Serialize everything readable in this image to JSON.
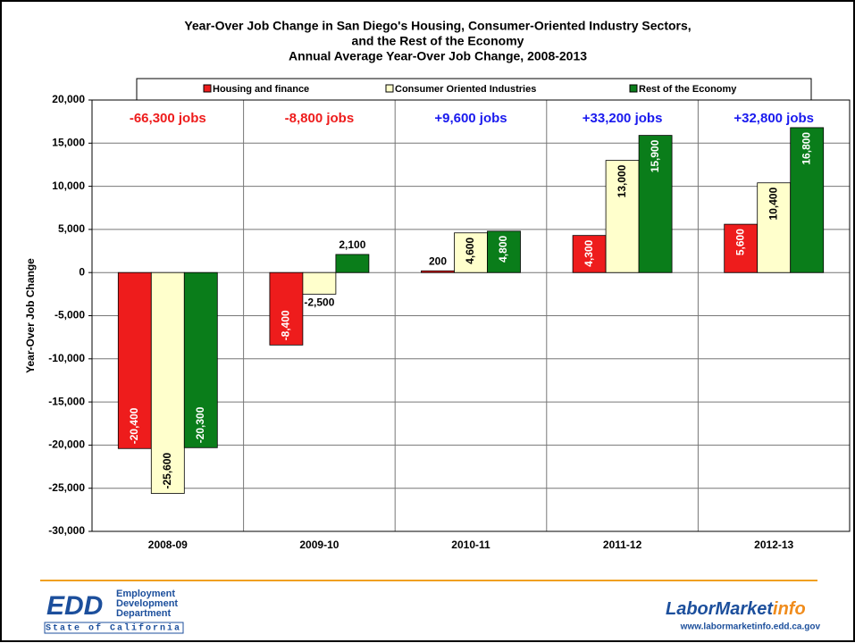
{
  "chart_data": {
    "type": "bar",
    "title": [
      "Year-Over Job Change in San Diego's Housing, Consumer-Oriented Industry Sectors,",
      "and the Rest of the Economy",
      "Annual Average Year-Over Job Change, 2008-2013"
    ],
    "y_label": "Year-Over Job Change",
    "categories": [
      "2008-09",
      "2009-10",
      "2010-11",
      "2011-12",
      "2012-13"
    ],
    "series": [
      {
        "name": "Housing and finance",
        "color": "#ee1c1c",
        "label_color": "#ffffff",
        "values": [
          -20400,
          -8400,
          200,
          4300,
          5600
        ],
        "value_labels": [
          "-20,400",
          "-8,400",
          "200",
          "4,300",
          "5,600"
        ]
      },
      {
        "name": "Consumer Oriented Industries",
        "color": "#ffffcc",
        "label_color": "#000000",
        "values": [
          -25600,
          -2500,
          4600,
          13000,
          10400
        ],
        "value_labels": [
          "-25,600",
          "-2,500",
          "4,600",
          "13,000",
          "10,400"
        ]
      },
      {
        "name": "Rest of the Economy",
        "color": "#0a7d1a",
        "label_color": "#ffffff",
        "values": [
          -20300,
          2100,
          4800,
          15900,
          16800
        ],
        "value_labels": [
          "-20,300",
          "2,100",
          "4,800",
          "15,900",
          "16,800"
        ]
      }
    ],
    "annotations": [
      {
        "text": "-66,300 jobs",
        "color": "#ee1c1c"
      },
      {
        "text": "-8,800 jobs",
        "color": "#ee1c1c"
      },
      {
        "text": "+9,600 jobs",
        "color": "#1a1aee"
      },
      {
        "text": "+33,200 jobs",
        "color": "#1a1aee"
      },
      {
        "text": "+32,800 jobs",
        "color": "#1a1aee"
      }
    ],
    "ylim": [
      -30000,
      20000
    ],
    "yticks": [
      {
        "value": -30000,
        "label": "-30,000"
      },
      {
        "value": -25000,
        "label": "-25,000"
      },
      {
        "value": -20000,
        "label": "-20,000"
      },
      {
        "value": -15000,
        "label": "-15,000"
      },
      {
        "value": -10000,
        "label": "-10,000"
      },
      {
        "value": -5000,
        "label": "-5,000"
      },
      0,
      {
        "value": 5000,
        "label": "5,000"
      },
      {
        "value": 10000,
        "label": "10,000"
      },
      {
        "value": 15000,
        "label": "15,000"
      },
      {
        "value": 20000,
        "label": "20,000"
      }
    ],
    "grid": true,
    "legend": "top"
  },
  "footer": {
    "edd": "EDD",
    "edd_lines": [
      "Employment",
      "Development",
      "Department"
    ],
    "state": "State of California",
    "lmi": [
      "LaborMarket",
      "info"
    ],
    "url": "www.labormarketinfo.edd.ca.gov"
  }
}
